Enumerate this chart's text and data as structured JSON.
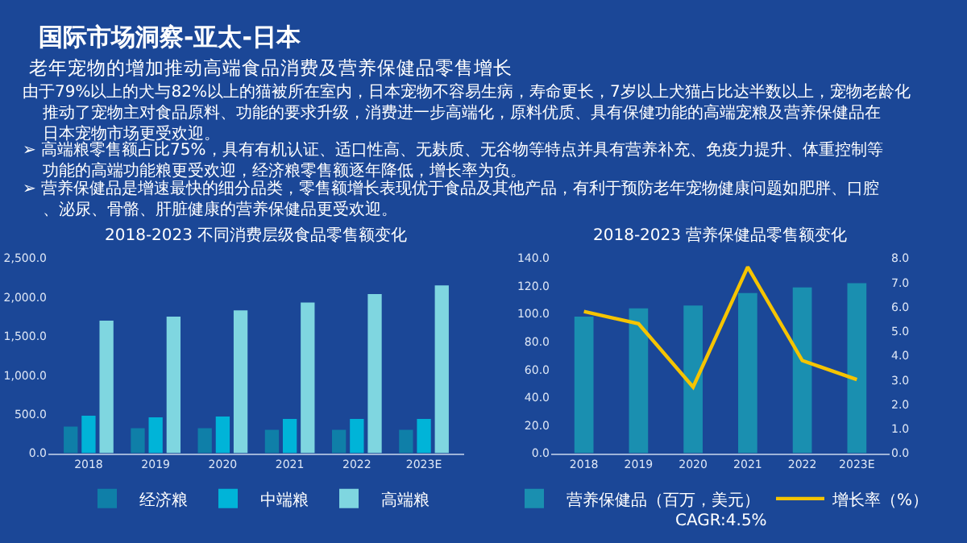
{
  "chart_data": [
    {
      "type": "other",
      "title": "国际市场洞察-亚太-日本",
      "subtitle": "老年宠物的增加推动高端食品消费及营养保健品零售增长",
      "annotations": [
        "由于79%以上的犬与82%以上的猫被所在室内，日本宠物不容易生病，寿命更长，7岁以上犬猫占比达半数以上，宠物老龄化推动了宠物主对食品原料、功能的要求升级，消费进一步高端化，原料优质、具有保健功能的高端宠粮及营养保健品在日本宠物市场更受欢迎。",
        "➢ 高端粮零售额占比75%，具有有机认证、适口性高、无麸质、无谷物等特点并具有营养补充、免疫力提升、体重控制等功能的高端功能粮更受欢迎，经济粮零售额逐年降低，增长率为负。",
        "➢ 营养保健品是增速最快的细分品类，零售额增长表现优于食品及其他产品，有利于预防老年宠物健康问题如肥胖、口腔、泌尿、骨骼、肝脏健康的营养保健品更受欢迎。"
      ]
    },
    {
      "type": "bar",
      "title": "2018-2023 不同消费层级食品零售额变化",
      "categories": [
        "2018",
        "2019",
        "2020",
        "2021",
        "2022",
        "2023E"
      ],
      "legend": "bottom",
      "grid": false,
      "ylim": [
        0,
        2500
      ],
      "yticks": [
        {
          "value": 0,
          "label": "0.0"
        },
        {
          "value": 500,
          "label": "500.0"
        },
        {
          "value": 1000,
          "label": "1,000.0"
        },
        {
          "value": 1500,
          "label": "1,500.0"
        },
        {
          "value": 2000,
          "label": "2,000.0"
        },
        {
          "value": 2500,
          "label": "2,500.0"
        }
      ],
      "series": [
        {
          "name": "经济粮",
          "color": "#0f7fa8",
          "values": [
            340,
            320,
            320,
            300,
            300,
            300
          ]
        },
        {
          "name": "中端粮",
          "color": "#00b4d8",
          "values": [
            480,
            460,
            470,
            440,
            440,
            440
          ]
        },
        {
          "name": "高端粮",
          "color": "#7fd6e0",
          "values": [
            1700,
            1750,
            1830,
            1930,
            2040,
            2150
          ]
        }
      ]
    },
    {
      "type": "bar",
      "title": "2018-2023 营养保健品零售额变化",
      "categories": [
        "2018",
        "2019",
        "2020",
        "2021",
        "2022",
        "2023E"
      ],
      "legend": "bottom",
      "grid": false,
      "annotations": [
        "CAGR:4.5%"
      ],
      "ylim": [
        0,
        140
      ],
      "yticks": [
        {
          "value": 0,
          "label": "0.0"
        },
        {
          "value": 20,
          "label": "20.0"
        },
        {
          "value": 40,
          "label": "40.0"
        },
        {
          "value": 60,
          "label": "60.0"
        },
        {
          "value": 80,
          "label": "80.0"
        },
        {
          "value": 100,
          "label": "100.0"
        },
        {
          "value": 120,
          "label": "120.0"
        },
        {
          "value": 140,
          "label": "140.0"
        }
      ],
      "y2lim": [
        0,
        8
      ],
      "y2ticks": [
        {
          "value": 0,
          "label": "0.0"
        },
        {
          "value": 1,
          "label": "1.0"
        },
        {
          "value": 2,
          "label": "2.0"
        },
        {
          "value": 3,
          "label": "3.0"
        },
        {
          "value": 4,
          "label": "4.0"
        },
        {
          "value": 5,
          "label": "5.0"
        },
        {
          "value": 6,
          "label": "6.0"
        },
        {
          "value": 7,
          "label": "7.0"
        },
        {
          "value": 8,
          "label": "8.0"
        }
      ],
      "series": [
        {
          "name": "营养保健品（百万，美元）",
          "color": "#1a8fb0",
          "values": [
            98,
            104,
            106,
            115,
            119,
            122
          ]
        },
        {
          "name": "增长率（%）",
          "type": "line",
          "axis": "y2",
          "color": "#f5c400",
          "marker": "none",
          "line_style": "solid",
          "values": [
            5.81,
            5.31,
            2.71,
            7.64,
            3.8,
            3.02
          ]
        }
      ]
    }
  ]
}
